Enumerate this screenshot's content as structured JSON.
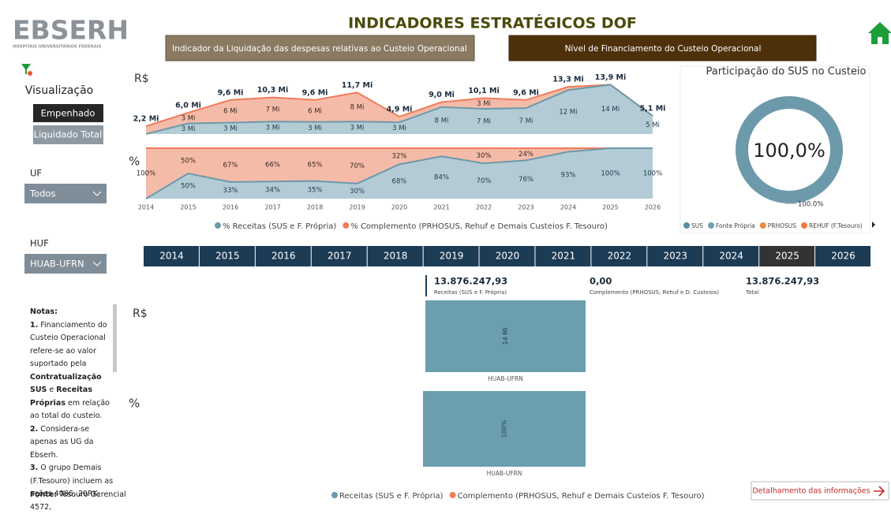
{
  "header": {
    "logo": "EBSERH",
    "logo_sub": "HOSPITAIS UNIVERSITÁRIOS FEDERAIS",
    "title": "INDICADORES ESTRATÉGICOS DOF",
    "tabs": [
      "Indicador da Liquidação das despesas relativas ao Custeio Operacional",
      "Nível de Financiamento do Custeio Operacional"
    ]
  },
  "sidebar": {
    "visualization_label": "Visualização",
    "buttons": [
      "Empenhado",
      "Liquidado Total"
    ],
    "uf_label": "UF",
    "uf_value": "Todos",
    "huf_label": "HUF",
    "huf_value": "HUAB-UFRN",
    "notes_title": "Notas:",
    "notes": [
      [
        "1.",
        " Financiamento do Custeio Operacional refere-se ao valor suportado pela ",
        "Contratualização SUS",
        " e ",
        "Receitas Próprias",
        " em relação ao total do custeio."
      ],
      [
        "2.",
        " Considera-se apenas as UG da Ebserh."
      ],
      [
        "3.",
        " O grupo Demais (F.Tesouro) incluem as ações 4086, 20RK, 4572,"
      ]
    ],
    "source_label": "Fonte:",
    "source": "Tesouro Gerencial"
  },
  "trend": {
    "years": [
      "2014",
      "2015",
      "2016",
      "2017",
      "2018",
      "2019",
      "2020",
      "2021",
      "2022",
      "2023",
      "2024",
      "2025",
      "2026"
    ],
    "rs": {
      "type": "area",
      "axis_label": "R$",
      "series": [
        {
          "name": "Receitas (SUS e F. Própria)",
          "color": "#6b9aab",
          "fill": "#b3cbd4",
          "values": [
            0,
            3.0,
            3.2,
            3.5,
            3.4,
            3.5,
            3.3,
            7.6,
            7.1,
            7.3,
            12.4,
            13.9,
            5.1
          ],
          "value_labels": [
            null,
            "3 Mi",
            "3 Mi",
            "3 Mi",
            "3 Mi",
            "3 Mi",
            "3 Mi",
            "8 Mi",
            "7 Mi",
            "7 Mi",
            "12 Mi",
            "14 Mi",
            "5 Mi"
          ]
        },
        {
          "name": "Complemento (PRHOSUS, Rehuf e Demais Custeios F. Tesouro)",
          "color": "#f07c5a",
          "fill": "#f5bba9",
          "values": [
            2.2,
            3.0,
            6.4,
            6.8,
            6.2,
            8.2,
            1.6,
            1.4,
            3.0,
            2.3,
            0.9,
            0,
            0
          ],
          "value_labels": [
            null,
            "3 Mi",
            "6 Mi",
            "7 Mi",
            "6 Mi",
            "8 Mi",
            null,
            null,
            "3 Mi",
            null,
            null,
            null,
            null
          ]
        }
      ],
      "totals": [
        2.2,
        6.0,
        9.6,
        10.3,
        9.6,
        11.7,
        4.9,
        9.0,
        10.1,
        9.6,
        13.3,
        13.9,
        5.1
      ],
      "total_labels": [
        "2,2 Mi",
        "6,0 Mi",
        "9,6 Mi",
        "10,3 Mi",
        "9,6 Mi",
        "11,7 Mi",
        "4,9 Mi",
        "9,0 Mi",
        "10,1 Mi",
        "9,6 Mi",
        "13,3 Mi",
        "13,9 Mi",
        "5,1 Mi"
      ]
    },
    "pct": {
      "type": "area",
      "axis_label": "%",
      "series": [
        {
          "name": "% Receitas (SUS e F. Própria)",
          "color": "#6b9aab",
          "fill": "#b3cbd4",
          "values": [
            0,
            50,
            33,
            34,
            35,
            30,
            68,
            84,
            70,
            76,
            93,
            100,
            100
          ],
          "value_labels": [
            null,
            "50%",
            "33%",
            "34%",
            "35%",
            "30%",
            "68%",
            "84%",
            "70%",
            "76%",
            "93%",
            "100%",
            "100%"
          ]
        },
        {
          "name": "% Complemento (PRHOSUS, Rehuf e Demais Custeios F. Tesouro)",
          "color": "#f07c5a",
          "fill": "#f5bba9",
          "values": [
            100,
            50,
            67,
            66,
            65,
            70,
            32,
            16,
            30,
            24,
            7,
            0,
            0
          ],
          "value_labels": [
            "100%",
            "50%",
            "67%",
            "66%",
            "65%",
            "70%",
            "32%",
            null,
            "30%",
            "24%",
            null,
            null,
            null
          ]
        }
      ]
    }
  },
  "donut": {
    "type": "pie",
    "title": "Participação do SUS no Custeio",
    "values": [
      100
    ],
    "center_label": "100,0%",
    "value_labels": [
      "100.0%"
    ],
    "color": "#6d9aab",
    "legend": [
      {
        "name": "SUS",
        "color": "#5b8fa3"
      },
      {
        "name": "Fonte Própria",
        "color": "#6f9fb3"
      },
      {
        "name": "PRHOSUS",
        "color": "#f08a3c"
      },
      {
        "name": "REHUF (F.Tesouro)",
        "color": "#f07a3c"
      }
    ]
  },
  "year_slicer": {
    "years": [
      "2014",
      "2015",
      "2016",
      "2017",
      "2018",
      "2019",
      "2020",
      "2021",
      "2022",
      "2023",
      "2024",
      "2025",
      "2026"
    ],
    "selected": 11
  },
  "kpis": [
    {
      "value": "13.876.247,93",
      "label": "Receitas (SUS e F. Própria)"
    },
    {
      "value": "0,00",
      "label": "Complemento (PRHOSUS, Rehuf e D. Custeios)"
    },
    {
      "value": "13.876.247,93",
      "label": "Total"
    }
  ],
  "hospital": {
    "rs": {
      "type": "bar",
      "axis_label": "R$",
      "categories": [
        "HUAB-UFRN"
      ],
      "values": [
        13.88
      ],
      "value_labels": [
        "14 Mi"
      ],
      "color": "#6b9fb0"
    },
    "pct": {
      "type": "bar",
      "axis_label": "%",
      "categories": [
        "HUAB-UFRN"
      ],
      "values": [
        100
      ],
      "value_labels": [
        "100%"
      ],
      "color": "#6b9fb0"
    },
    "legend": [
      {
        "name": "Receitas (SUS e F. Própria)",
        "color": "#6b9aab"
      },
      {
        "name": "Complemento (PRHOSUS, Rehuf e Demais Custeios F. Tesouro)",
        "color": "#f07c5a"
      }
    ]
  },
  "detail_button": "Detalhamento das informações"
}
